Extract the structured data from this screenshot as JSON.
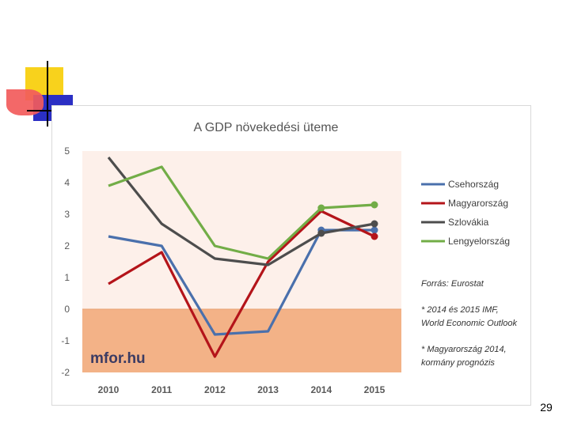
{
  "slide": {
    "number": "29"
  },
  "watermark": "mfor.hu",
  "notes": {
    "source": "Forrás: Eurostat",
    "note1": [
      "* 2014 és 2015 IMF,",
      "World Economic Outlook"
    ],
    "note2": [
      "* Magyarország 2014,",
      "kormány prognózis"
    ]
  },
  "colors": {
    "positive_band": "#fdf0ea",
    "negative_band": "#f3b287",
    "zero_line": "#e8a070"
  },
  "chart_data": {
    "type": "line",
    "title": "A GDP növekedési üteme",
    "xlabel": "",
    "ylabel": "",
    "ylim": [
      -2,
      5
    ],
    "yticks": [
      "5",
      "4",
      "3",
      "2",
      "1",
      "0",
      "-1",
      "-2"
    ],
    "yticks_values": [
      5,
      4,
      3,
      2,
      1,
      0,
      -1,
      -2
    ],
    "categories": [
      "2010",
      "2011",
      "2012",
      "2013",
      "2014",
      "2015"
    ],
    "legend_position": "right",
    "series": [
      {
        "name": "Csehország",
        "color": "#4a70ac",
        "values": [
          2.3,
          2.0,
          -0.8,
          -0.7,
          2.5,
          2.5
        ],
        "markers": [
          false,
          false,
          false,
          false,
          true,
          true
        ]
      },
      {
        "name": "Magyarország",
        "color": "#b4141a",
        "values": [
          0.8,
          1.8,
          -1.5,
          1.5,
          3.1,
          2.3
        ],
        "markers": [
          false,
          false,
          false,
          false,
          false,
          true
        ]
      },
      {
        "name": "Szlovákia",
        "color": "#4d4d4d",
        "values": [
          4.8,
          2.7,
          1.6,
          1.4,
          2.4,
          2.7
        ],
        "markers": [
          false,
          false,
          false,
          false,
          true,
          true
        ]
      },
      {
        "name": "Lengyelország",
        "color": "#72ad47",
        "values": [
          3.9,
          4.5,
          2.0,
          1.6,
          3.2,
          3.3
        ],
        "markers": [
          false,
          false,
          false,
          false,
          true,
          true
        ]
      }
    ]
  }
}
